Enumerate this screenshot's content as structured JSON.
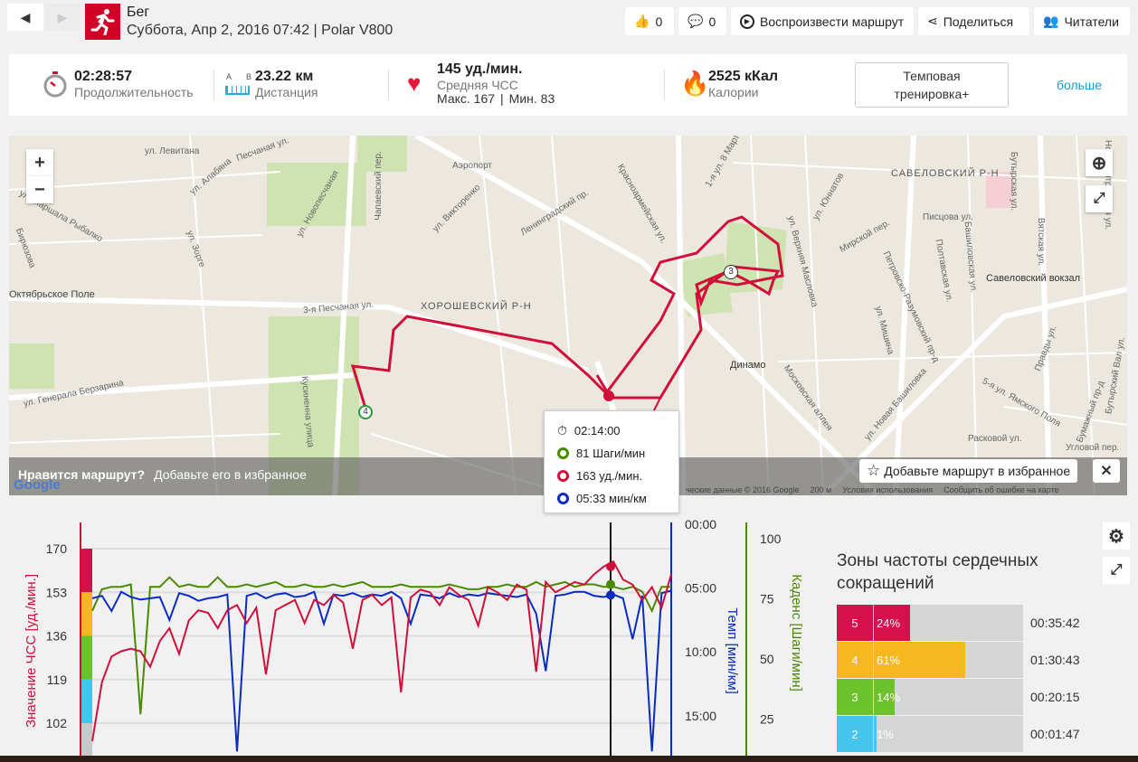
{
  "header": {
    "sport": "Бег",
    "subtitle": "Суббота, Апр 2, 2016 07:42 | Polar V800",
    "sport_icon": "runner-icon",
    "brand_color": "#d10027"
  },
  "toolbar": {
    "likes": "0",
    "comments": "0",
    "replay": "Воспроизвести маршрут",
    "share": "Поделиться",
    "followers": "Читатели"
  },
  "summary": {
    "duration": {
      "value": "02:28:57",
      "label": "Продолжительность"
    },
    "distance": {
      "value": "23.22 км",
      "label": "Дистанция",
      "a": "A",
      "b": "B"
    },
    "hr": {
      "value": "145 уд./мин.",
      "label": "Средняя ЧСС",
      "max": "Макс. 167",
      "min": "Мин. 83",
      "sep": "|"
    },
    "calories": {
      "value": "2525 кКал",
      "label": "Калории"
    },
    "training": "Темповая тренировка+",
    "more": "больше"
  },
  "map": {
    "zoom_in": "+",
    "zoom_out": "−",
    "labels": [
      "Аэропорт",
      "Ленинградский пр.",
      "Красноармейская ул.",
      "ул. Викторенко",
      "ул. Левитана",
      "Песчаная ул.",
      "ул. Алабяна",
      "ул. Новопесчаная",
      "Чапаевский пер.",
      "ул. Маршала Рыбалко",
      "Бирюзова",
      "ул. Зорге",
      "Октябрьское Поле",
      "3-я Песчаная ул.",
      "ул. Генерала Берзарина",
      "Кусиненна улица",
      "Динамо",
      "Московская аллея",
      "ул. Новая Башиловка",
      "Савеловский вокзал",
      "Писцова ул.",
      "Башиловская ул.",
      "Полтавская ул.",
      "ул. Верхняя Масловка",
      "Петровско-Разумовский пр-д",
      "ул. Юннатов",
      "Мирской пер.",
      "1-я ул. 8 Марта",
      "Бутырская ул.",
      "Расковой ул.",
      "Бумажный пр-д",
      "5-я ул. Ямского Поля",
      "Правды ул.",
      "Вятская ул.",
      "Новодмитровская ул.",
      "Бутырский Вал ул.",
      "ул. Мишина",
      "Угловой пер."
    ],
    "districts": [
      "ХОРОШЕВСКИЙ Р-Н",
      "САВЕЛОВСКИЙ Р-Н"
    ],
    "waypoints": [
      "3",
      "4"
    ],
    "favorite_prompt": "Нравится маршрут?",
    "favorite_hint": "Добавьте его в избранное",
    "favorite_button": "Добавьте маршрут в избранное",
    "close": "✕",
    "attribution": "ческие данные © 2016 Google",
    "scale": "200 м",
    "terms": "Условия использования",
    "report": "Сообщить об ошибке на карте",
    "google": "Google"
  },
  "tooltip": {
    "time": "02:14:00",
    "cadence": "81 Шаги/мин",
    "hr": "163 уд./мин.",
    "pace": "05:33 мин/км"
  },
  "colors": {
    "hr": "#d10f3a",
    "pace": "#0a2dc0",
    "cadence": "#4a8a00"
  },
  "chart_data": {
    "type": "line",
    "y_left": {
      "label": "Значение ЧСС [уд./мин.]",
      "ticks": [
        "170",
        "153",
        "136",
        "119",
        "102"
      ],
      "range": [
        85,
        178
      ]
    },
    "y_pace": {
      "label": "Темп [мин/км]",
      "ticks": [
        "00:00",
        "05:00",
        "10:00",
        "15:00"
      ],
      "range_min": [
        0,
        18
      ]
    },
    "y_cad": {
      "label": "Каденс [Шаги/мин]",
      "ticks": [
        "100",
        "75",
        "50",
        "25"
      ],
      "range": [
        0,
        106
      ]
    },
    "cursor_fraction": 0.895,
    "series": [
      {
        "name": "ЧСС",
        "values": [
          95,
          118,
          128,
          130,
          131,
          130,
          124,
          134,
          139,
          129,
          142,
          146,
          145,
          139,
          146,
          148,
          141,
          147,
          121,
          146,
          148,
          150,
          141,
          150,
          148,
          152,
          149,
          131,
          150,
          152,
          148,
          151,
          114,
          151,
          154,
          153,
          148,
          155,
          152,
          150,
          140,
          155,
          153,
          150,
          156,
          154,
          122,
          157,
          153,
          155,
          157,
          156,
          160,
          163,
          165,
          158,
          156,
          150,
          155,
          147,
          160
        ]
      },
      {
        "name": "Темп",
        "values": [
          5.8,
          5.6,
          6.8,
          5.3,
          5.7,
          5.9,
          5.8,
          5.7,
          7.5,
          5.4,
          5.6,
          6.0,
          5.8,
          5.7,
          5.5,
          17.8,
          5.6,
          5.4,
          5.8,
          5.5,
          5.4,
          5.7,
          5.6,
          5.3,
          7.8,
          5.5,
          5.6,
          5.4,
          5.7,
          5.5,
          5.6,
          5.3,
          5.8,
          7.8,
          5.5,
          5.6,
          5.8,
          5.4,
          5.7,
          5.5,
          5.6,
          5.4,
          5.5,
          5.6,
          5.7,
          5.5,
          7.0,
          11.5,
          5.6,
          5.5,
          5.3,
          5.3,
          5.6,
          5.7,
          5.5,
          5.8,
          9.0,
          5.6,
          17.8,
          5.4,
          5.2
        ]
      },
      {
        "name": "Каденс",
        "values": [
          70,
          79,
          80,
          80,
          81,
          27,
          80,
          80,
          84,
          80,
          81,
          80,
          80,
          84,
          80,
          80,
          81,
          80,
          81,
          82,
          80,
          80,
          81,
          80,
          80,
          81,
          80,
          81,
          82,
          80,
          80,
          80,
          81,
          80,
          80,
          80,
          80,
          81,
          80,
          79,
          79,
          80,
          80,
          81,
          80,
          80,
          82,
          80,
          81,
          82,
          80,
          81,
          81,
          80,
          80,
          79,
          80,
          78,
          70,
          80,
          80
        ]
      }
    ]
  },
  "zones": {
    "title": "Зоны частоты сердечных сокращений",
    "items": [
      {
        "num": "5",
        "pct": "24%",
        "time": "00:35:42",
        "color": "#d6104d",
        "fill": 0.24
      },
      {
        "num": "4",
        "pct": "61%",
        "time": "01:30:43",
        "color": "#f7b81f",
        "fill": 0.61
      },
      {
        "num": "3",
        "pct": "14%",
        "time": "00:20:15",
        "color": "#6cc22c",
        "fill": 0.14
      },
      {
        "num": "2",
        "pct": "1%",
        "time": "00:01:47",
        "color": "#45c5ee",
        "fill": 0.01
      }
    ]
  }
}
